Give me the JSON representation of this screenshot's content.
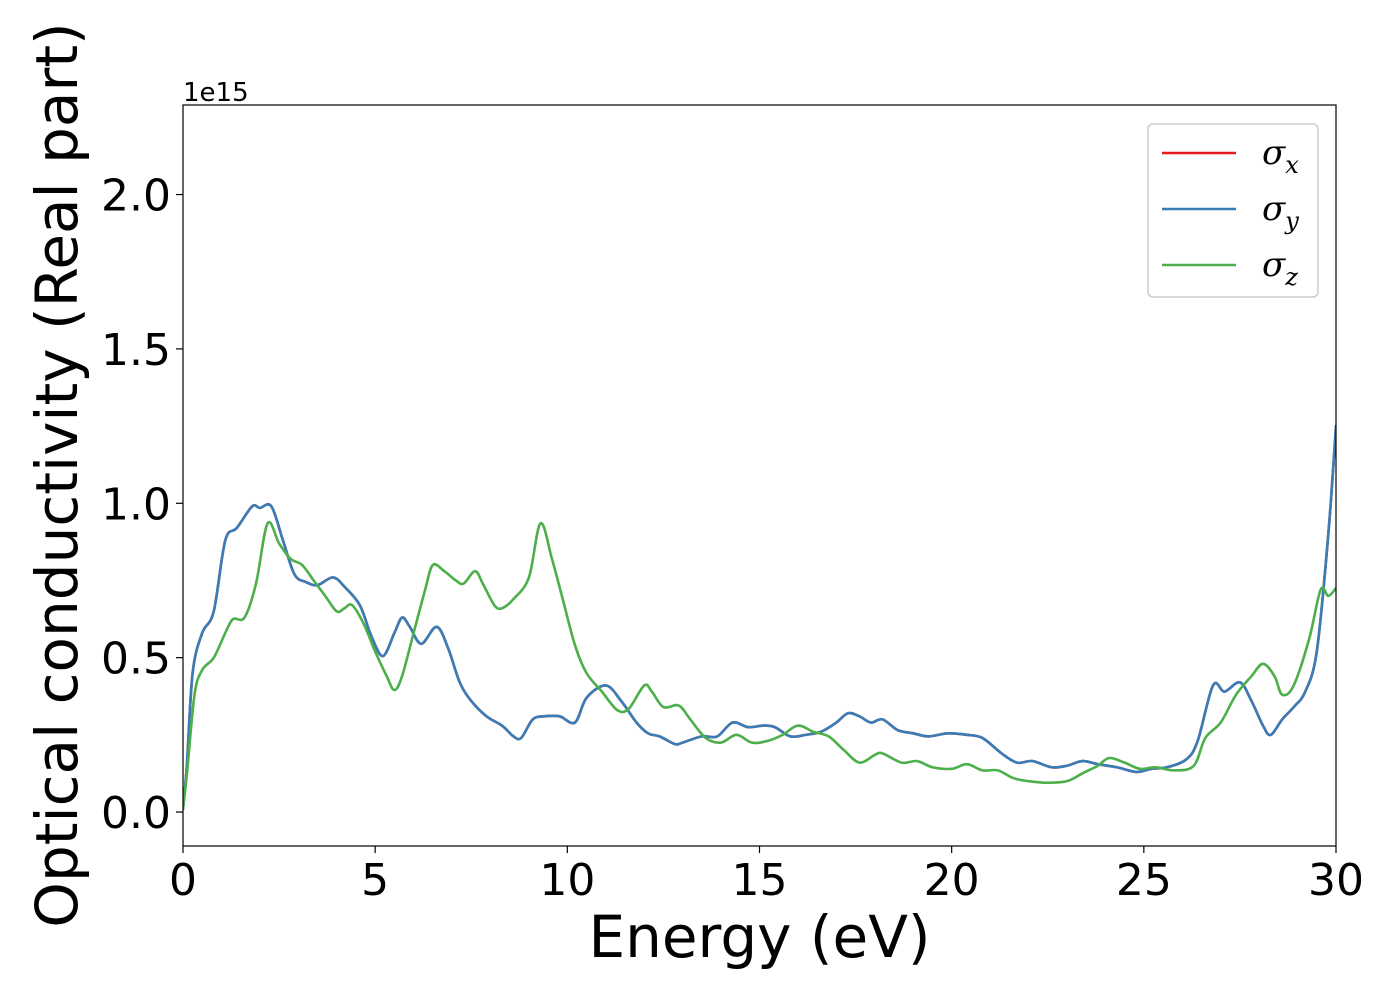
{
  "chart_data": {
    "type": "line",
    "title": "",
    "xlabel": "Energy (eV)",
    "ylabel": "Optical conductivity (Real part)",
    "y_offset_label": "1e15",
    "xlim": [
      0,
      30
    ],
    "ylim": [
      -0.11,
      2.29
    ],
    "x_ticks": [
      0,
      5,
      10,
      15,
      20,
      25,
      30
    ],
    "x_tick_labels": [
      "0",
      "5",
      "10",
      "15",
      "20",
      "25",
      "30"
    ],
    "y_ticks": [
      0.0,
      0.5,
      1.0,
      1.5,
      2.0
    ],
    "y_tick_labels": [
      "0.0",
      "0.5",
      "1.0",
      "1.5",
      "2.0"
    ],
    "grid": false,
    "legend_position": "top-right",
    "series": [
      {
        "name": "σx",
        "sym": "σ",
        "sub": "x",
        "color": "#e41a1c",
        "points": [
          [
            0,
            0.01
          ],
          [
            0.1,
            0.15
          ],
          [
            0.25,
            0.45
          ],
          [
            0.5,
            0.58
          ],
          [
            0.8,
            0.65
          ],
          [
            1.1,
            0.88
          ],
          [
            1.4,
            0.92
          ],
          [
            1.8,
            0.99
          ],
          [
            2.0,
            0.985
          ],
          [
            2.3,
            0.99
          ],
          [
            2.6,
            0.88
          ],
          [
            2.9,
            0.77
          ],
          [
            3.2,
            0.745
          ],
          [
            3.5,
            0.735
          ],
          [
            3.9,
            0.76
          ],
          [
            4.2,
            0.73
          ],
          [
            4.6,
            0.67
          ],
          [
            4.9,
            0.57
          ],
          [
            5.2,
            0.505
          ],
          [
            5.5,
            0.58
          ],
          [
            5.7,
            0.63
          ],
          [
            5.9,
            0.6
          ],
          [
            6.2,
            0.545
          ],
          [
            6.6,
            0.6
          ],
          [
            6.9,
            0.53
          ],
          [
            7.2,
            0.42
          ],
          [
            7.5,
            0.36
          ],
          [
            7.9,
            0.31
          ],
          [
            8.3,
            0.28
          ],
          [
            8.6,
            0.245
          ],
          [
            8.8,
            0.24
          ],
          [
            9.1,
            0.3
          ],
          [
            9.4,
            0.31
          ],
          [
            9.8,
            0.31
          ],
          [
            10.2,
            0.29
          ],
          [
            10.5,
            0.37
          ],
          [
            11.0,
            0.41
          ],
          [
            11.4,
            0.36
          ],
          [
            11.8,
            0.29
          ],
          [
            12.1,
            0.255
          ],
          [
            12.4,
            0.245
          ],
          [
            12.8,
            0.22
          ],
          [
            13.0,
            0.225
          ],
          [
            13.5,
            0.245
          ],
          [
            13.9,
            0.245
          ],
          [
            14.3,
            0.29
          ],
          [
            14.7,
            0.275
          ],
          [
            15.1,
            0.28
          ],
          [
            15.4,
            0.275
          ],
          [
            15.8,
            0.245
          ],
          [
            16.2,
            0.25
          ],
          [
            16.6,
            0.26
          ],
          [
            17.0,
            0.29
          ],
          [
            17.3,
            0.32
          ],
          [
            17.6,
            0.31
          ],
          [
            17.9,
            0.29
          ],
          [
            18.2,
            0.3
          ],
          [
            18.6,
            0.265
          ],
          [
            19.0,
            0.255
          ],
          [
            19.4,
            0.245
          ],
          [
            19.9,
            0.255
          ],
          [
            20.4,
            0.25
          ],
          [
            20.8,
            0.24
          ],
          [
            21.3,
            0.19
          ],
          [
            21.7,
            0.16
          ],
          [
            22.1,
            0.165
          ],
          [
            22.6,
            0.145
          ],
          [
            23.0,
            0.15
          ],
          [
            23.4,
            0.165
          ],
          [
            23.8,
            0.155
          ],
          [
            24.3,
            0.145
          ],
          [
            24.8,
            0.13
          ],
          [
            25.2,
            0.14
          ],
          [
            25.6,
            0.145
          ],
          [
            26.1,
            0.17
          ],
          [
            26.4,
            0.23
          ],
          [
            26.8,
            0.41
          ],
          [
            27.1,
            0.39
          ],
          [
            27.5,
            0.42
          ],
          [
            27.8,
            0.36
          ],
          [
            28.1,
            0.28
          ],
          [
            28.3,
            0.25
          ],
          [
            28.6,
            0.3
          ],
          [
            28.9,
            0.34
          ],
          [
            29.2,
            0.39
          ],
          [
            29.5,
            0.52
          ],
          [
            29.8,
            0.9
          ],
          [
            30.0,
            1.25
          ]
        ]
      },
      {
        "name": "σy",
        "sym": "σ",
        "sub": "y",
        "color": "#377eb8",
        "points": [
          [
            0,
            0.01
          ],
          [
            0.1,
            0.15
          ],
          [
            0.25,
            0.45
          ],
          [
            0.5,
            0.58
          ],
          [
            0.8,
            0.65
          ],
          [
            1.1,
            0.88
          ],
          [
            1.4,
            0.92
          ],
          [
            1.8,
            0.99
          ],
          [
            2.0,
            0.985
          ],
          [
            2.3,
            0.99
          ],
          [
            2.6,
            0.88
          ],
          [
            2.9,
            0.77
          ],
          [
            3.2,
            0.745
          ],
          [
            3.5,
            0.735
          ],
          [
            3.9,
            0.76
          ],
          [
            4.2,
            0.73
          ],
          [
            4.6,
            0.67
          ],
          [
            4.9,
            0.57
          ],
          [
            5.2,
            0.505
          ],
          [
            5.5,
            0.58
          ],
          [
            5.7,
            0.63
          ],
          [
            5.9,
            0.6
          ],
          [
            6.2,
            0.545
          ],
          [
            6.6,
            0.6
          ],
          [
            6.9,
            0.53
          ],
          [
            7.2,
            0.42
          ],
          [
            7.5,
            0.36
          ],
          [
            7.9,
            0.31
          ],
          [
            8.3,
            0.28
          ],
          [
            8.6,
            0.245
          ],
          [
            8.8,
            0.24
          ],
          [
            9.1,
            0.3
          ],
          [
            9.4,
            0.31
          ],
          [
            9.8,
            0.31
          ],
          [
            10.2,
            0.29
          ],
          [
            10.5,
            0.37
          ],
          [
            11.0,
            0.41
          ],
          [
            11.4,
            0.36
          ],
          [
            11.8,
            0.29
          ],
          [
            12.1,
            0.255
          ],
          [
            12.4,
            0.245
          ],
          [
            12.8,
            0.22
          ],
          [
            13.0,
            0.225
          ],
          [
            13.5,
            0.245
          ],
          [
            13.9,
            0.245
          ],
          [
            14.3,
            0.29
          ],
          [
            14.7,
            0.275
          ],
          [
            15.1,
            0.28
          ],
          [
            15.4,
            0.275
          ],
          [
            15.8,
            0.245
          ],
          [
            16.2,
            0.25
          ],
          [
            16.6,
            0.26
          ],
          [
            17.0,
            0.29
          ],
          [
            17.3,
            0.32
          ],
          [
            17.6,
            0.31
          ],
          [
            17.9,
            0.29
          ],
          [
            18.2,
            0.3
          ],
          [
            18.6,
            0.265
          ],
          [
            19.0,
            0.255
          ],
          [
            19.4,
            0.245
          ],
          [
            19.9,
            0.255
          ],
          [
            20.4,
            0.25
          ],
          [
            20.8,
            0.24
          ],
          [
            21.3,
            0.19
          ],
          [
            21.7,
            0.16
          ],
          [
            22.1,
            0.165
          ],
          [
            22.6,
            0.145
          ],
          [
            23.0,
            0.15
          ],
          [
            23.4,
            0.165
          ],
          [
            23.8,
            0.155
          ],
          [
            24.3,
            0.145
          ],
          [
            24.8,
            0.13
          ],
          [
            25.2,
            0.14
          ],
          [
            25.6,
            0.145
          ],
          [
            26.1,
            0.17
          ],
          [
            26.4,
            0.23
          ],
          [
            26.8,
            0.41
          ],
          [
            27.1,
            0.39
          ],
          [
            27.5,
            0.42
          ],
          [
            27.8,
            0.36
          ],
          [
            28.1,
            0.28
          ],
          [
            28.3,
            0.25
          ],
          [
            28.6,
            0.3
          ],
          [
            28.9,
            0.34
          ],
          [
            29.2,
            0.39
          ],
          [
            29.5,
            0.52
          ],
          [
            29.8,
            0.9
          ],
          [
            30.0,
            1.25
          ]
        ]
      },
      {
        "name": "σz",
        "sym": "σ",
        "sub": "z",
        "color": "#4daf4a",
        "points": [
          [
            0,
            0.01
          ],
          [
            0.1,
            0.12
          ],
          [
            0.3,
            0.38
          ],
          [
            0.5,
            0.46
          ],
          [
            0.8,
            0.5
          ],
          [
            1.1,
            0.58
          ],
          [
            1.3,
            0.625
          ],
          [
            1.6,
            0.63
          ],
          [
            1.9,
            0.74
          ],
          [
            2.2,
            0.935
          ],
          [
            2.5,
            0.87
          ],
          [
            2.8,
            0.82
          ],
          [
            3.1,
            0.8
          ],
          [
            3.4,
            0.75
          ],
          [
            3.7,
            0.7
          ],
          [
            4.0,
            0.65
          ],
          [
            4.2,
            0.66
          ],
          [
            4.4,
            0.67
          ],
          [
            4.7,
            0.61
          ],
          [
            5.0,
            0.52
          ],
          [
            5.3,
            0.44
          ],
          [
            5.5,
            0.395
          ],
          [
            5.7,
            0.44
          ],
          [
            6.0,
            0.58
          ],
          [
            6.3,
            0.72
          ],
          [
            6.5,
            0.8
          ],
          [
            6.8,
            0.78
          ],
          [
            7.1,
            0.75
          ],
          [
            7.3,
            0.74
          ],
          [
            7.6,
            0.78
          ],
          [
            7.8,
            0.74
          ],
          [
            8.1,
            0.67
          ],
          [
            8.3,
            0.66
          ],
          [
            8.6,
            0.69
          ],
          [
            9.0,
            0.76
          ],
          [
            9.3,
            0.935
          ],
          [
            9.6,
            0.82
          ],
          [
            9.9,
            0.68
          ],
          [
            10.2,
            0.54
          ],
          [
            10.5,
            0.45
          ],
          [
            10.9,
            0.39
          ],
          [
            11.3,
            0.33
          ],
          [
            11.6,
            0.335
          ],
          [
            12.0,
            0.41
          ],
          [
            12.2,
            0.39
          ],
          [
            12.5,
            0.34
          ],
          [
            12.9,
            0.345
          ],
          [
            13.2,
            0.3
          ],
          [
            13.6,
            0.24
          ],
          [
            14.0,
            0.225
          ],
          [
            14.4,
            0.25
          ],
          [
            14.8,
            0.225
          ],
          [
            15.2,
            0.23
          ],
          [
            15.6,
            0.25
          ],
          [
            16.0,
            0.28
          ],
          [
            16.4,
            0.26
          ],
          [
            16.8,
            0.245
          ],
          [
            17.2,
            0.2
          ],
          [
            17.6,
            0.16
          ],
          [
            18.0,
            0.185
          ],
          [
            18.2,
            0.19
          ],
          [
            18.7,
            0.16
          ],
          [
            19.1,
            0.165
          ],
          [
            19.5,
            0.145
          ],
          [
            20.0,
            0.14
          ],
          [
            20.4,
            0.155
          ],
          [
            20.8,
            0.135
          ],
          [
            21.2,
            0.135
          ],
          [
            21.6,
            0.11
          ],
          [
            22.0,
            0.1
          ],
          [
            22.5,
            0.095
          ],
          [
            23.0,
            0.1
          ],
          [
            23.4,
            0.125
          ],
          [
            23.8,
            0.15
          ],
          [
            24.1,
            0.175
          ],
          [
            24.5,
            0.16
          ],
          [
            24.9,
            0.14
          ],
          [
            25.3,
            0.145
          ],
          [
            25.8,
            0.135
          ],
          [
            26.3,
            0.15
          ],
          [
            26.6,
            0.24
          ],
          [
            27.0,
            0.29
          ],
          [
            27.4,
            0.38
          ],
          [
            27.8,
            0.44
          ],
          [
            28.1,
            0.48
          ],
          [
            28.4,
            0.44
          ],
          [
            28.6,
            0.38
          ],
          [
            28.9,
            0.41
          ],
          [
            29.3,
            0.56
          ],
          [
            29.6,
            0.72
          ],
          [
            29.8,
            0.7
          ],
          [
            30.0,
            0.725
          ]
        ]
      }
    ]
  }
}
